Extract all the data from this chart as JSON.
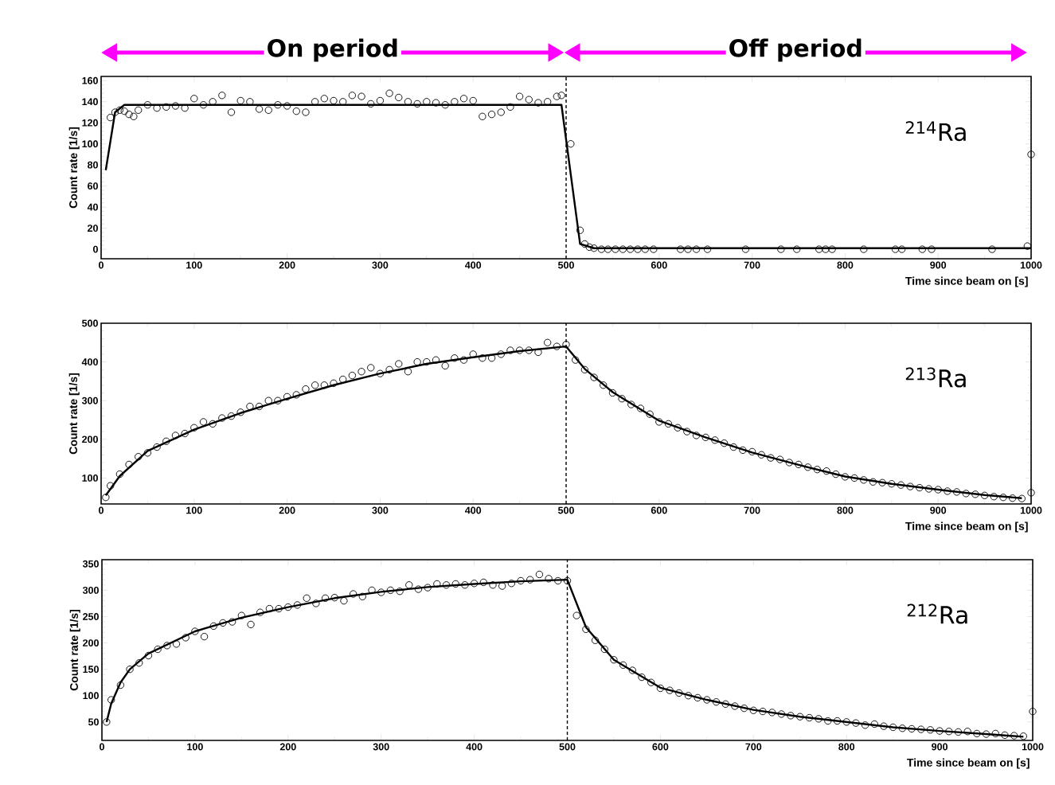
{
  "chart_data": [
    {
      "type": "scatter",
      "xlabel": "Time since beam on [s]",
      "ylabel": "Count rate [1/s]",
      "annotations": [
        "On period",
        "Off period",
        "$^{214}$Ra"
      ],
      "xlim": [
        0,
        1000
      ],
      "ylim": [
        -9,
        164
      ],
      "xticks": [
        0,
        100,
        200,
        300,
        400,
        500,
        600,
        700,
        800,
        900,
        1000
      ],
      "yticks": [
        0,
        20,
        40,
        60,
        80,
        100,
        120,
        140,
        160
      ],
      "ref_lines": [
        {
          "axis": "x",
          "value": 500,
          "color": "#000000",
          "line_style": "dashed"
        }
      ],
      "series": [
        {
          "marker": "circle",
          "color": "#000000",
          "x": [
            10,
            15,
            20,
            25,
            30,
            35,
            40,
            50,
            60,
            70,
            80,
            90,
            100,
            110,
            120,
            130,
            140,
            150,
            160,
            170,
            180,
            190,
            200,
            210,
            220,
            230,
            240,
            250,
            260,
            270,
            280,
            290,
            300,
            310,
            320,
            330,
            340,
            350,
            360,
            370,
            380,
            390,
            400,
            410,
            420,
            430,
            440,
            450,
            460,
            470,
            480,
            490,
            495,
            505,
            515,
            520,
            525,
            530,
            538,
            545,
            553,
            561,
            569,
            577,
            585,
            594,
            623,
            631,
            640,
            652,
            693,
            731,
            748,
            772,
            779,
            786,
            820,
            854,
            861,
            883,
            893,
            958,
            996,
            1000
          ],
          "values": [
            125,
            130,
            132,
            131,
            128,
            126,
            132,
            137,
            134,
            135,
            136,
            134,
            143,
            137,
            140,
            146,
            130,
            141,
            140,
            133,
            132,
            137,
            136,
            131,
            130,
            140,
            143,
            141,
            140,
            146,
            145,
            138,
            141,
            148,
            144,
            140,
            138,
            140,
            139,
            137,
            140,
            143,
            141,
            126,
            128,
            130,
            135,
            145,
            142,
            139,
            140,
            145,
            146,
            100,
            18,
            5,
            2,
            1,
            0,
            0,
            0,
            0,
            0,
            0,
            0,
            0,
            0,
            0,
            0,
            0,
            0,
            0,
            0,
            0,
            0,
            0,
            0,
            0,
            0,
            0,
            0,
            0,
            3,
            90
          ]
        },
        {
          "type": "line",
          "color": "#000000",
          "x": [
            5,
            15,
            25,
            495,
            515,
            530,
            1000
          ],
          "values": [
            75,
            130,
            137,
            137,
            5,
            1,
            1
          ]
        }
      ]
    },
    {
      "type": "scatter",
      "xlabel": "Time since beam on [s]",
      "ylabel": "Count rate [1/s]",
      "annotations": [
        "$^{213}$Ra"
      ],
      "xlim": [
        0,
        1000
      ],
      "ylim": [
        33,
        500
      ],
      "xticks": [
        0,
        100,
        200,
        300,
        400,
        500,
        600,
        700,
        800,
        900,
        1000
      ],
      "yticks": [
        100,
        200,
        300,
        400,
        500
      ],
      "ref_lines": [
        {
          "axis": "x",
          "value": 500,
          "color": "#000000",
          "line_style": "dashed"
        }
      ],
      "series": [
        {
          "marker": "circle",
          "color": "#000000",
          "x": [
            5,
            10,
            20,
            30,
            40,
            50,
            60,
            70,
            80,
            90,
            100,
            110,
            120,
            130,
            140,
            150,
            160,
            170,
            180,
            190,
            200,
            210,
            220,
            230,
            240,
            250,
            260,
            270,
            280,
            290,
            300,
            310,
            320,
            330,
            340,
            350,
            360,
            370,
            380,
            390,
            400,
            410,
            420,
            430,
            440,
            450,
            460,
            470,
            480,
            490,
            500,
            510,
            520,
            530,
            540,
            550,
            560,
            570,
            580,
            590,
            600,
            610,
            620,
            630,
            640,
            650,
            660,
            670,
            680,
            690,
            700,
            710,
            720,
            730,
            740,
            750,
            760,
            770,
            780,
            790,
            800,
            810,
            820,
            830,
            840,
            850,
            860,
            870,
            880,
            890,
            900,
            910,
            920,
            930,
            940,
            950,
            960,
            970,
            980,
            990,
            1000
          ],
          "values": [
            50,
            80,
            110,
            135,
            155,
            165,
            180,
            195,
            210,
            215,
            230,
            245,
            240,
            255,
            260,
            270,
            285,
            285,
            300,
            300,
            310,
            315,
            330,
            340,
            340,
            345,
            355,
            365,
            375,
            385,
            370,
            380,
            395,
            375,
            400,
            400,
            405,
            390,
            410,
            405,
            420,
            410,
            410,
            420,
            430,
            430,
            430,
            425,
            450,
            440,
            445,
            405,
            380,
            360,
            340,
            320,
            305,
            290,
            280,
            265,
            245,
            240,
            230,
            220,
            210,
            205,
            198,
            190,
            180,
            172,
            168,
            160,
            152,
            148,
            140,
            135,
            128,
            122,
            118,
            110,
            103,
            100,
            95,
            90,
            88,
            85,
            82,
            78,
            75,
            72,
            70,
            66,
            64,
            60,
            58,
            55,
            52,
            50,
            48,
            47,
            62
          ]
        },
        {
          "type": "line",
          "color": "#000000",
          "x": [
            5,
            20,
            50,
            100,
            150,
            200,
            250,
            300,
            350,
            400,
            450,
            500,
            520,
            550,
            600,
            650,
            700,
            750,
            800,
            850,
            900,
            950,
            990
          ],
          "values": [
            55,
            105,
            170,
            225,
            268,
            305,
            340,
            370,
            395,
            412,
            428,
            440,
            382,
            322,
            248,
            205,
            166,
            134,
            104,
            85,
            70,
            56,
            48
          ]
        }
      ]
    },
    {
      "type": "scatter",
      "xlabel": "Time since beam on [s]",
      "ylabel": "Count rate [1/s]",
      "annotations": [
        "$^{212}$Ra"
      ],
      "xlim": [
        0,
        1000
      ],
      "ylim": [
        15,
        358
      ],
      "xticks": [
        0,
        100,
        200,
        300,
        400,
        500,
        600,
        700,
        800,
        900,
        1000
      ],
      "yticks": [
        50,
        100,
        150,
        200,
        250,
        300,
        350
      ],
      "ref_lines": [
        {
          "axis": "x",
          "value": 500,
          "color": "#000000",
          "line_style": "dashed"
        }
      ],
      "series": [
        {
          "marker": "circle",
          "color": "#000000",
          "x": [
            5,
            10,
            20,
            30,
            40,
            50,
            60,
            70,
            80,
            90,
            100,
            110,
            120,
            130,
            140,
            150,
            160,
            170,
            180,
            190,
            200,
            210,
            220,
            230,
            240,
            250,
            260,
            270,
            280,
            290,
            300,
            310,
            320,
            330,
            340,
            350,
            360,
            370,
            380,
            390,
            400,
            410,
            420,
            430,
            440,
            450,
            460,
            470,
            480,
            490,
            500,
            510,
            520,
            530,
            540,
            550,
            560,
            570,
            580,
            590,
            600,
            610,
            620,
            630,
            640,
            650,
            660,
            670,
            680,
            690,
            700,
            710,
            720,
            730,
            740,
            750,
            760,
            770,
            780,
            790,
            800,
            810,
            820,
            830,
            840,
            850,
            860,
            870,
            880,
            890,
            900,
            910,
            920,
            930,
            940,
            950,
            960,
            970,
            980,
            990,
            1000
          ],
          "values": [
            50,
            92,
            120,
            150,
            162,
            176,
            188,
            195,
            198,
            210,
            222,
            212,
            232,
            238,
            240,
            252,
            235,
            258,
            265,
            265,
            268,
            272,
            285,
            275,
            285,
            286,
            280,
            293,
            288,
            300,
            296,
            300,
            298,
            310,
            302,
            305,
            312,
            310,
            312,
            310,
            313,
            315,
            310,
            308,
            313,
            318,
            320,
            330,
            322,
            318,
            318,
            252,
            226,
            205,
            188,
            168,
            158,
            148,
            135,
            125,
            114,
            110,
            105,
            100,
            96,
            92,
            88,
            84,
            80,
            76,
            72,
            70,
            68,
            65,
            62,
            60,
            58,
            56,
            52,
            52,
            50,
            48,
            44,
            46,
            42,
            40,
            38,
            37,
            36,
            35,
            33,
            32,
            31,
            32,
            28,
            27,
            28,
            25,
            24,
            23,
            70
          ]
        },
        {
          "type": "line",
          "color": "#000000",
          "x": [
            5,
            10,
            20,
            30,
            50,
            100,
            150,
            200,
            250,
            300,
            350,
            400,
            450,
            500,
            520,
            550,
            600,
            650,
            700,
            750,
            800,
            850,
            900,
            950,
            990
          ],
          "values": [
            50,
            85,
            125,
            150,
            180,
            222,
            248,
            268,
            285,
            297,
            306,
            312,
            317,
            320,
            230,
            168,
            115,
            92,
            73,
            60,
            50,
            40,
            33,
            27,
            22
          ]
        }
      ]
    }
  ]
}
